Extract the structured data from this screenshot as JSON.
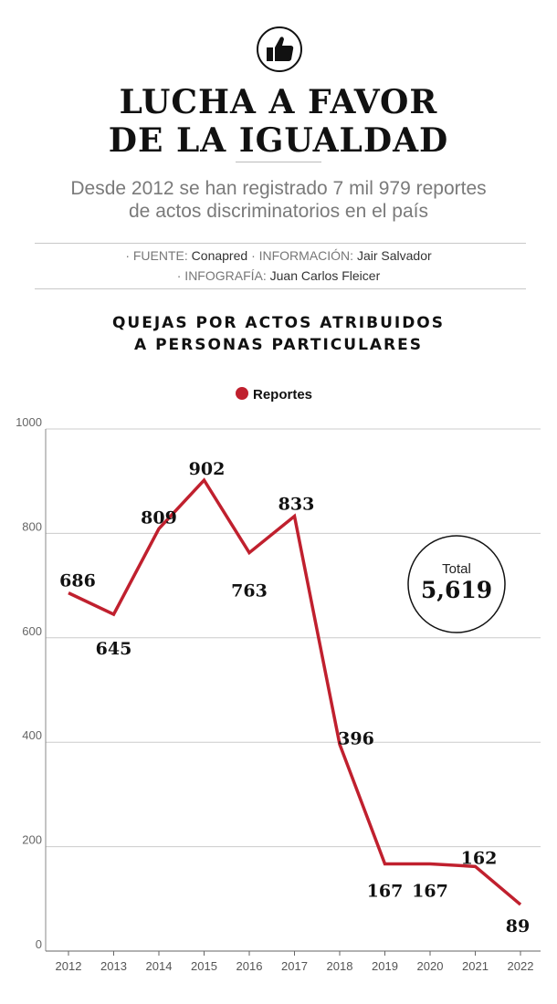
{
  "header": {
    "title_line1": "LUCHA A FAVOR",
    "title_line2": "DE LA IGUALDAD",
    "subtitle_line1": "Desde 2012 se han registrado 7 mil 979 reportes",
    "subtitle_line2": "de actos discriminatorios en el país",
    "icon": "thumbs-up-icon"
  },
  "credits": {
    "source_label": "· FUENTE:",
    "source_value": "Conapred",
    "info_label": "· INFORMACIÓN:",
    "info_value": "Jair Salvador",
    "infographic_label": "· INFOGRAFÍA:",
    "infographic_value": "Juan Carlos Fleicer"
  },
  "colors": {
    "accent": "#c0202e",
    "axis": "#888888",
    "grid": "#cccccc"
  },
  "chart_data": {
    "type": "line",
    "title_line1": "QUEJAS POR ACTOS ATRIBUIDOS",
    "title_line2": "A PERSONAS PARTICULARES",
    "legend": "Reportes",
    "categories": [
      "2012",
      "2013",
      "2014",
      "2015",
      "2016",
      "2017",
      "2018",
      "2019",
      "2020",
      "2021",
      "2022"
    ],
    "values": [
      686,
      645,
      809,
      902,
      763,
      833,
      396,
      167,
      167,
      162,
      89
    ],
    "data_labels": [
      "686",
      "645",
      "809",
      "902",
      "763",
      "833",
      "396",
      "167",
      "167",
      "162",
      "89"
    ],
    "yticks": [
      0,
      200,
      400,
      600,
      800,
      1000
    ],
    "ytick_labels": [
      "0",
      "200",
      "400",
      "600",
      "800",
      "1000"
    ],
    "ylim": [
      0,
      1000
    ],
    "total_label": "Total",
    "total_value": "5,619"
  }
}
